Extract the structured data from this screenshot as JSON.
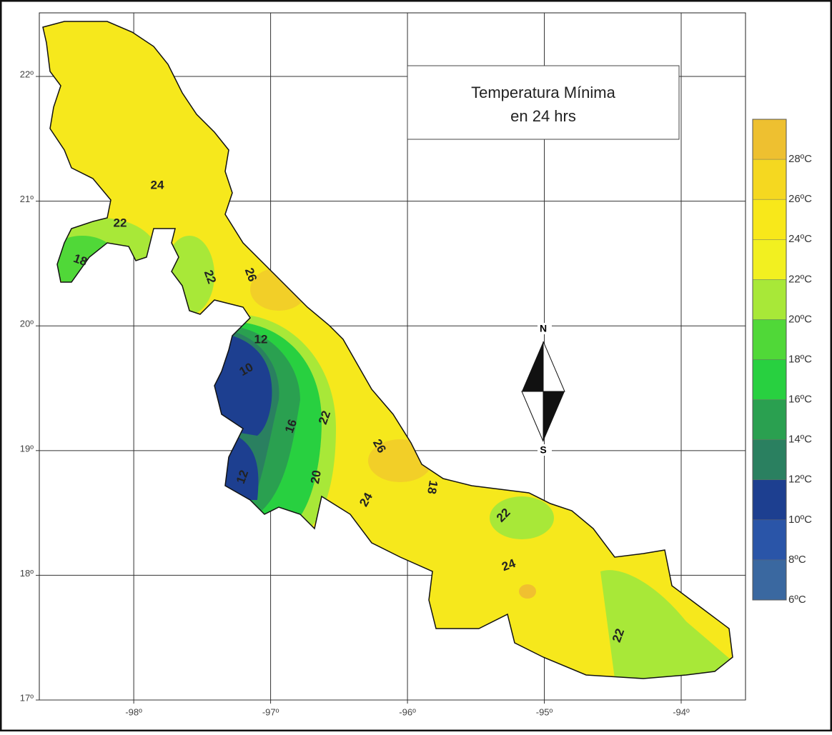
{
  "map": {
    "title": [
      "Temperatura Mínima",
      "en 24 hrs"
    ],
    "xlim": [
      -98.69,
      -93.53
    ],
    "ylim": [
      17,
      22.51
    ],
    "xticks": [
      {
        "value": -98,
        "label": "-98º"
      },
      {
        "value": -97,
        "label": "-97º"
      },
      {
        "value": -96,
        "label": "-96º"
      },
      {
        "value": -95,
        "label": "-95º"
      },
      {
        "value": -94,
        "label": "-94º"
      }
    ],
    "yticks": [
      {
        "value": 17,
        "label": "17º"
      },
      {
        "value": 18,
        "label": "18º"
      },
      {
        "value": 19,
        "label": "19º"
      },
      {
        "value": 20,
        "label": "20º"
      },
      {
        "value": 21,
        "label": "21º"
      },
      {
        "value": 22,
        "label": "22º"
      }
    ],
    "grid": true,
    "compass": [
      "N",
      "S"
    ],
    "contour_labels": [
      "24",
      "22",
      "18",
      "22",
      "26",
      "12",
      "10",
      "16",
      "22",
      "26",
      "12",
      "20",
      "24",
      "18",
      "22",
      "24",
      "22"
    ],
    "legend": {
      "lim": [
        6,
        30
      ],
      "ticks": [
        {
          "value": 6,
          "label": "6ºC"
        },
        {
          "value": 8,
          "label": "8ºC"
        },
        {
          "value": 10,
          "label": "10ºC"
        },
        {
          "value": 12,
          "label": "12ºC"
        },
        {
          "value": 14,
          "label": "14ºC"
        },
        {
          "value": 16,
          "label": "16ºC"
        },
        {
          "value": 18,
          "label": "18ºC"
        },
        {
          "value": 20,
          "label": "20ºC"
        },
        {
          "value": 22,
          "label": "22ºC"
        },
        {
          "value": 24,
          "label": "24ºC"
        },
        {
          "value": 26,
          "label": "26ºC"
        },
        {
          "value": 28,
          "label": "28ºC"
        }
      ],
      "colors": [
        "#3a68a0",
        "#2a55a8",
        "#1d3f90",
        "#2a8060",
        "#2aa050",
        "#28d040",
        "#50d838",
        "#a8e838",
        "#f2f020",
        "#f8e81a",
        "#f5d820",
        "#eec030"
      ]
    }
  }
}
